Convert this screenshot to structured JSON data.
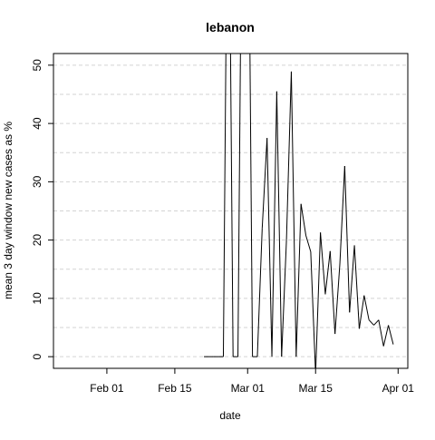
{
  "chart_data": {
    "type": "line",
    "title": "lebanon",
    "xlabel": "date",
    "ylabel": "mean  3  day window new cases as %",
    "x_ticks": [
      "2020-02-01",
      "2020-02-15",
      "2020-03-01",
      "2020-03-15",
      "2020-04-01"
    ],
    "x_tick_labels": [
      "Feb 01",
      "Feb 15",
      "Mar 01",
      "Mar 15",
      "Apr 01"
    ],
    "xlim": [
      "2020-01-21",
      "2020-04-03"
    ],
    "y_ticks": [
      0,
      10,
      20,
      30,
      40,
      50
    ],
    "ylim": [
      -2,
      52
    ],
    "grid": {
      "horizontal": true,
      "vertical": false,
      "style": "dashed",
      "color": "#d3d3d3"
    },
    "minor_gridlines_y": [
      5,
      15,
      25,
      35,
      45
    ],
    "line_color": "#000000",
    "series": [
      {
        "x": [
          "2020-02-21",
          "2020-02-22",
          "2020-02-23",
          "2020-02-24",
          "2020-02-25",
          "2020-02-26",
          "2020-02-27",
          "2020-02-28",
          "2020-02-29",
          "2020-03-01",
          "2020-03-02",
          "2020-03-03",
          "2020-03-04",
          "2020-03-05",
          "2020-03-06",
          "2020-03-07",
          "2020-03-08",
          "2020-03-09",
          "2020-03-10",
          "2020-03-11",
          "2020-03-12",
          "2020-03-13",
          "2020-03-14",
          "2020-03-15",
          "2020-03-16",
          "2020-03-17",
          "2020-03-18",
          "2020-03-19",
          "2020-03-20",
          "2020-03-21",
          "2020-03-22",
          "2020-03-23",
          "2020-03-24",
          "2020-03-25",
          "2020-03-26",
          "2020-03-27",
          "2020-03-28",
          "2020-03-29",
          "2020-03-30",
          "2020-03-31",
          "2020-04-01"
        ],
        "y": [
          0,
          0,
          0,
          0,
          0,
          100,
          0,
          0,
          100,
          100,
          0,
          0,
          22,
          37.5,
          0,
          45.5,
          0,
          20,
          48.9,
          0,
          26.2,
          20.8,
          18,
          -3,
          21.3,
          10.7,
          18.1,
          3.9,
          15.9,
          32.7,
          7.6,
          19.1,
          4.8,
          10.5,
          6.3,
          5.4,
          6.3,
          1.8,
          5.4,
          2.1,
          null
        ]
      }
    ]
  }
}
